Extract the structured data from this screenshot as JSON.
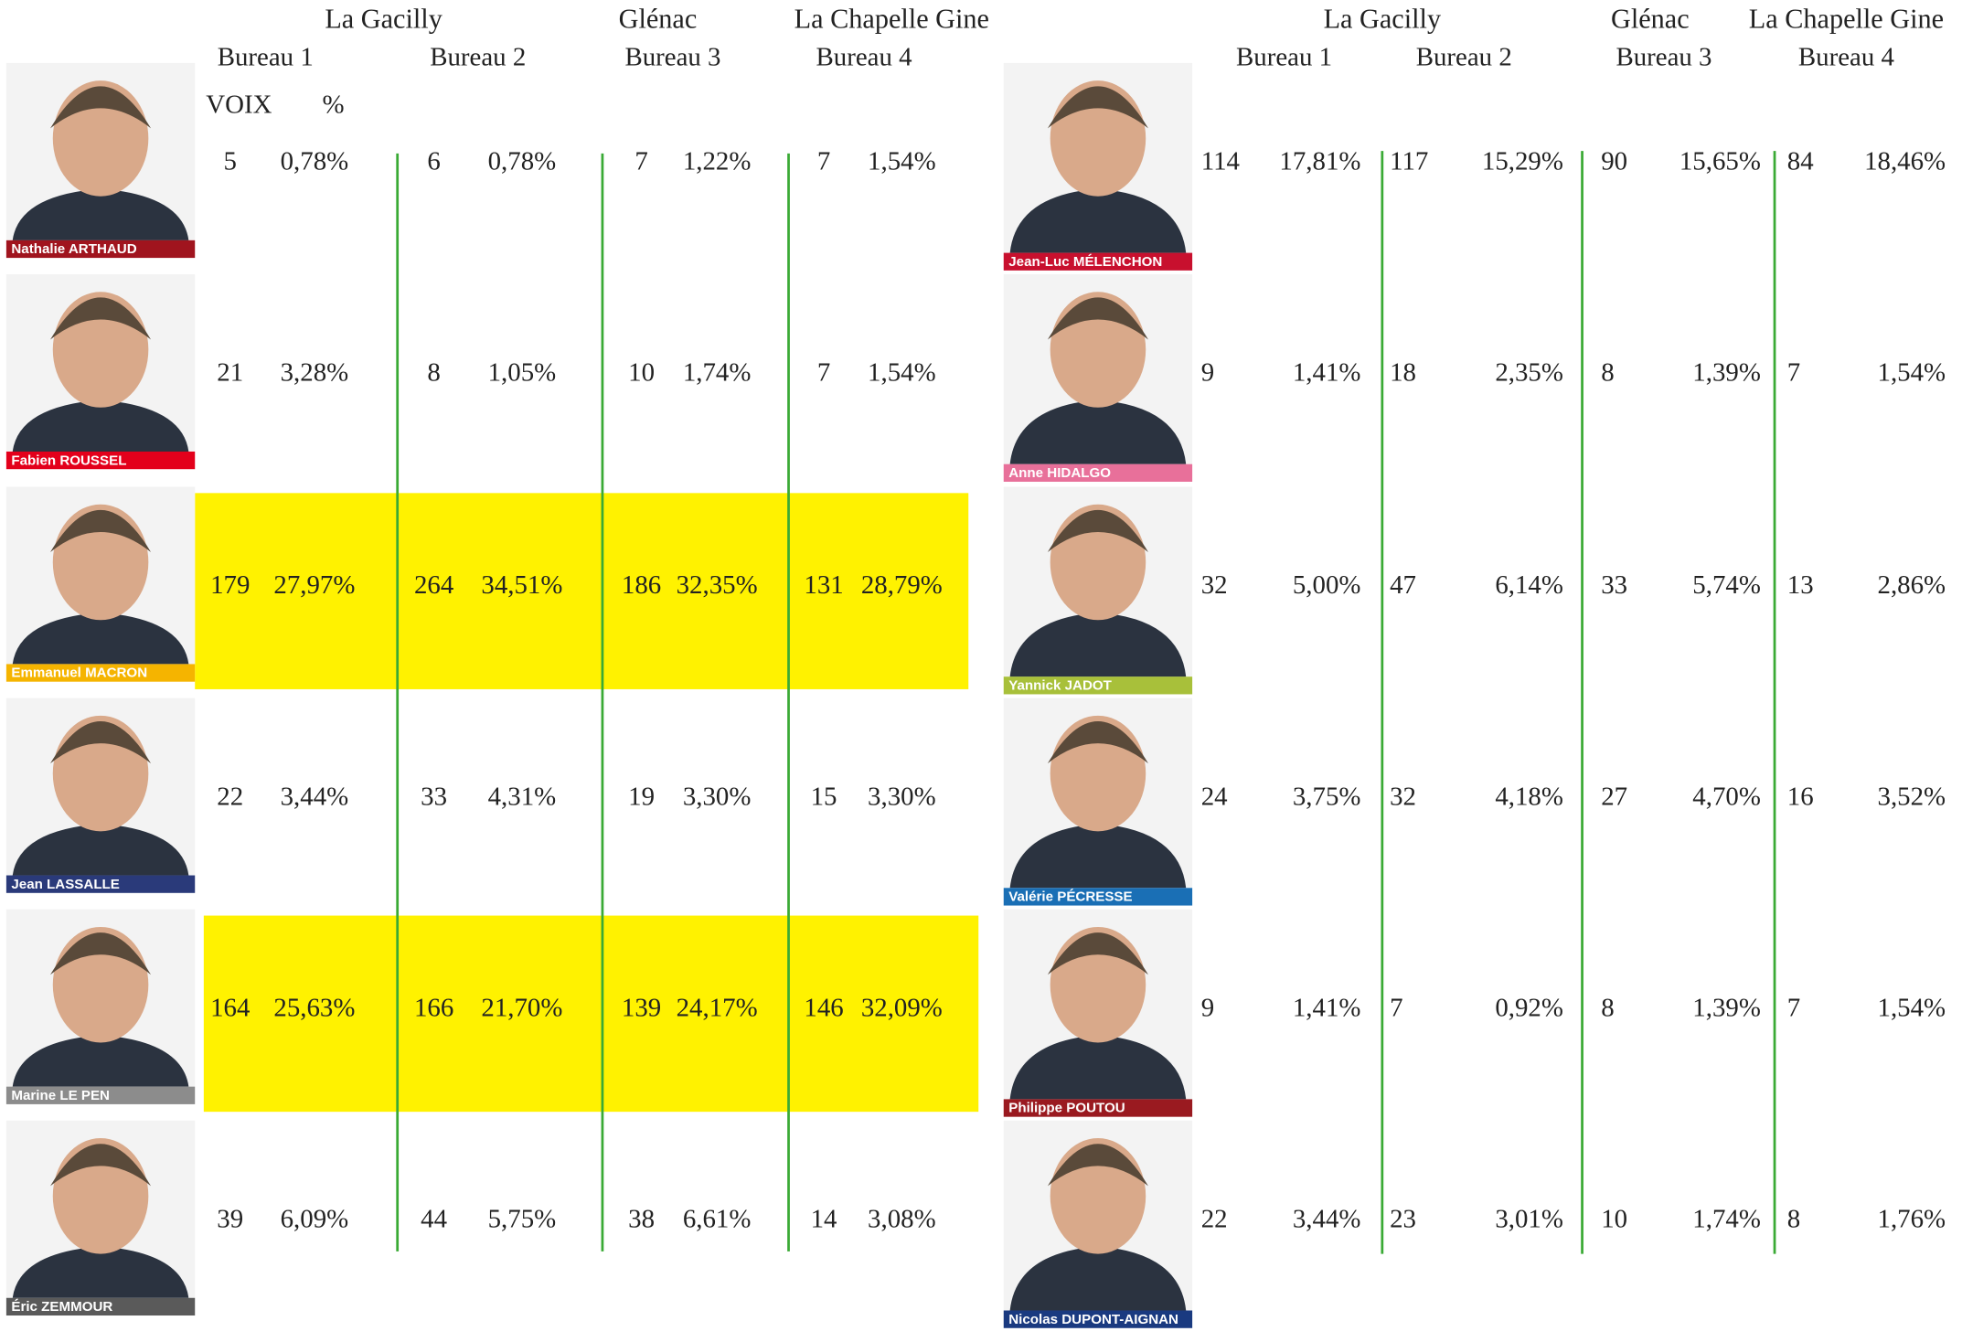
{
  "panels": [
    {
      "communes": [
        {
          "name": "La Gacilly",
          "color": "#3aaa35"
        },
        {
          "name": "Glénac",
          "color": "#d0142c"
        },
        {
          "name": "La Chapelle Gine",
          "color": "#1aa0d8"
        }
      ],
      "bureaus": [
        "Bureau 1",
        "Bureau 2",
        "Bureau 3",
        "Bureau 4"
      ],
      "columns": [
        "VOIX",
        "%"
      ],
      "candidates": [
        {
          "name": "Nathalie ARTHAUD",
          "color": "#a0141e",
          "highlight": false,
          "results": [
            [
              5,
              "0,78%"
            ],
            [
              6,
              "0,78%"
            ],
            [
              7,
              "1,22%"
            ],
            [
              7,
              "1,54%"
            ]
          ]
        },
        {
          "name": "Fabien ROUSSEL",
          "color": "#e3001b",
          "highlight": false,
          "results": [
            [
              21,
              "3,28%"
            ],
            [
              8,
              "1,05%"
            ],
            [
              10,
              "1,74%"
            ],
            [
              7,
              "1,54%"
            ]
          ]
        },
        {
          "name": "Emmanuel MACRON",
          "color": "#f5b400",
          "highlight": true,
          "results": [
            [
              179,
              "27,97%"
            ],
            [
              264,
              "34,51%"
            ],
            [
              186,
              "32,35%"
            ],
            [
              131,
              "28,79%"
            ]
          ]
        },
        {
          "name": "Jean LASSALLE",
          "color": "#2a3a7a",
          "highlight": false,
          "results": [
            [
              22,
              "3,44%"
            ],
            [
              33,
              "4,31%"
            ],
            [
              19,
              "3,30%"
            ],
            [
              15,
              "3,30%"
            ]
          ]
        },
        {
          "name": "Marine LE PEN",
          "color": "#8c8c8c",
          "highlight": true,
          "results": [
            [
              164,
              "25,63%"
            ],
            [
              166,
              "21,70%"
            ],
            [
              139,
              "24,17%"
            ],
            [
              146,
              "32,09%"
            ]
          ]
        },
        {
          "name": "Éric ZEMMOUR",
          "color": "#5a5a5a",
          "highlight": false,
          "results": [
            [
              39,
              "6,09%"
            ],
            [
              44,
              "5,75%"
            ],
            [
              38,
              "6,61%"
            ],
            [
              14,
              "3,08%"
            ]
          ]
        }
      ]
    },
    {
      "communes": [
        {
          "name": "La Gacilly",
          "color": "#3aaa35"
        },
        {
          "name": "Glénac",
          "color": "#d0142c"
        },
        {
          "name": "La Chapelle Gine",
          "color": "#1aa0d8"
        }
      ],
      "bureaus": [
        "Bureau 1",
        "Bureau 2",
        "Bureau 3",
        "Bureau 4"
      ],
      "candidates": [
        {
          "name": "Jean-Luc MÉLENCHON",
          "color": "#c8102e",
          "highlight": false,
          "results": [
            [
              114,
              "17,81%"
            ],
            [
              117,
              "15,29%"
            ],
            [
              90,
              "15,65%"
            ],
            [
              84,
              "18,46%"
            ]
          ]
        },
        {
          "name": "Anne HIDALGO",
          "color": "#e8709a",
          "highlight": false,
          "results": [
            [
              9,
              "1,41%"
            ],
            [
              18,
              "2,35%"
            ],
            [
              8,
              "1,39%"
            ],
            [
              7,
              "1,54%"
            ]
          ]
        },
        {
          "name": "Yannick JADOT",
          "color": "#a8c03a",
          "highlight": false,
          "results": [
            [
              32,
              "5,00%"
            ],
            [
              47,
              "6,14%"
            ],
            [
              33,
              "5,74%"
            ],
            [
              13,
              "2,86%"
            ]
          ]
        },
        {
          "name": "Valérie PÉCRESSE",
          "color": "#1a6fb5",
          "highlight": false,
          "results": [
            [
              24,
              "3,75%"
            ],
            [
              32,
              "4,18%"
            ],
            [
              27,
              "4,70%"
            ],
            [
              16,
              "3,52%"
            ]
          ]
        },
        {
          "name": "Philippe POUTOU",
          "color": "#9a1a20",
          "highlight": false,
          "results": [
            [
              9,
              "1,41%"
            ],
            [
              7,
              "0,92%"
            ],
            [
              8,
              "1,39%"
            ],
            [
              7,
              "1,54%"
            ]
          ]
        },
        {
          "name": "Nicolas DUPONT-AIGNAN",
          "color": "#1a3a80",
          "highlight": false,
          "results": [
            [
              22,
              "3,44%"
            ],
            [
              23,
              "3,01%"
            ],
            [
              10,
              "1,74%"
            ],
            [
              8,
              "1,76%"
            ]
          ]
        }
      ]
    }
  ]
}
